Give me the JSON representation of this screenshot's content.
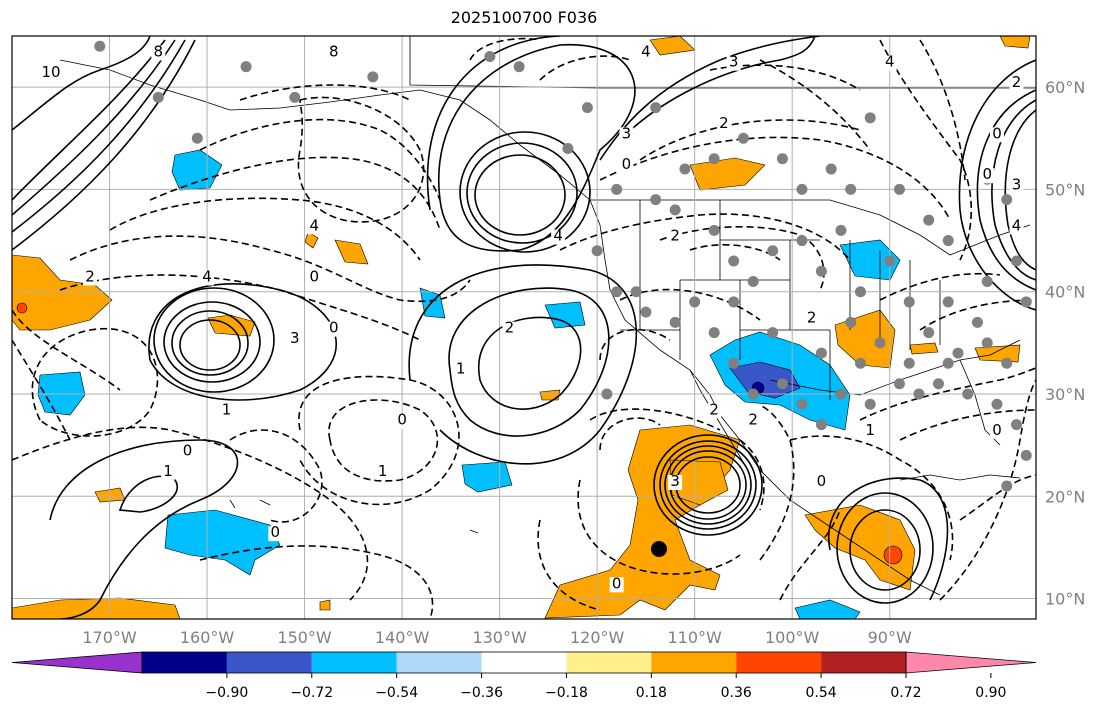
{
  "title": "2025100700 F036",
  "map": {
    "lon_range": [
      -180,
      -75
    ],
    "lat_range": [
      8,
      65
    ],
    "lon_ticks": [
      {
        "lon": -170,
        "label": "170°W"
      },
      {
        "lon": -160,
        "label": "160°W"
      },
      {
        "lon": -150,
        "label": "150°W"
      },
      {
        "lon": -140,
        "label": "140°W"
      },
      {
        "lon": -130,
        "label": "130°W"
      },
      {
        "lon": -120,
        "label": "120°W"
      },
      {
        "lon": -110,
        "label": "110°W"
      },
      {
        "lon": -100,
        "label": "100°W"
      },
      {
        "lon": -90,
        "label": "90°W"
      }
    ],
    "lat_ticks": [
      {
        "lat": 60,
        "label": "60°N"
      },
      {
        "lat": 50,
        "label": "50°N"
      },
      {
        "lat": 40,
        "label": "40°N"
      },
      {
        "lat": 30,
        "label": "30°N"
      },
      {
        "lat": 20,
        "label": "20°N"
      },
      {
        "lat": 10,
        "label": "10°N"
      }
    ],
    "grid": true,
    "contour_labels": [
      {
        "lon": -176,
        "lat": 61,
        "text": "10"
      },
      {
        "lon": -172,
        "lat": 41,
        "text": "2"
      },
      {
        "lon": -165,
        "lat": 63,
        "text": "8"
      },
      {
        "lon": -147,
        "lat": 63,
        "text": "8"
      },
      {
        "lon": -160,
        "lat": 41,
        "text": "4"
      },
      {
        "lon": -149,
        "lat": 46,
        "text": "4"
      },
      {
        "lon": -151,
        "lat": 35,
        "text": "3"
      },
      {
        "lon": -147,
        "lat": 36,
        "text": "0"
      },
      {
        "lon": -149,
        "lat": 41,
        "text": "0"
      },
      {
        "lon": -129,
        "lat": 36,
        "text": "2"
      },
      {
        "lon": -134,
        "lat": 32,
        "text": "1"
      },
      {
        "lon": -124,
        "lat": 45,
        "text": "4"
      },
      {
        "lon": -117,
        "lat": 55,
        "text": "3"
      },
      {
        "lon": -117,
        "lat": 52,
        "text": "0"
      },
      {
        "lon": -115,
        "lat": 63,
        "text": "4"
      },
      {
        "lon": -106,
        "lat": 62,
        "text": "3"
      },
      {
        "lon": -107,
        "lat": 56,
        "text": "2"
      },
      {
        "lon": -112,
        "lat": 45,
        "text": "2"
      },
      {
        "lon": -158,
        "lat": 28,
        "text": "1"
      },
      {
        "lon": -162,
        "lat": 24,
        "text": "0"
      },
      {
        "lon": -164,
        "lat": 22,
        "text": "1"
      },
      {
        "lon": -140,
        "lat": 27,
        "text": "0"
      },
      {
        "lon": -142,
        "lat": 22,
        "text": "1"
      },
      {
        "lon": -153,
        "lat": 16,
        "text": "0"
      },
      {
        "lon": -112,
        "lat": 21,
        "text": "3"
      },
      {
        "lon": -108,
        "lat": 28,
        "text": "2"
      },
      {
        "lon": -104,
        "lat": 27,
        "text": "2"
      },
      {
        "lon": -118,
        "lat": 11,
        "text": "0"
      },
      {
        "lon": -98,
        "lat": 37,
        "text": "2"
      },
      {
        "lon": -97,
        "lat": 21,
        "text": "0"
      },
      {
        "lon": -92,
        "lat": 26,
        "text": "1"
      },
      {
        "lon": -79,
        "lat": 26,
        "text": "0"
      },
      {
        "lon": -80,
        "lat": 51,
        "text": "0"
      },
      {
        "lon": -77,
        "lat": 50,
        "text": "3"
      },
      {
        "lon": -77,
        "lat": 46,
        "text": "4"
      },
      {
        "lon": -90,
        "lat": 62,
        "text": "4"
      },
      {
        "lon": -77,
        "lat": 60,
        "text": "2"
      },
      {
        "lon": -79,
        "lat": 55,
        "text": "0"
      }
    ],
    "colors": {
      "contour": "#000000",
      "grid": "#b0b0b0",
      "station": "#808080",
      "tick_label": "#808080"
    }
  },
  "colorbar": {
    "ticks": [
      "−0.90",
      "−0.72",
      "−0.54",
      "−0.36",
      "−0.18",
      "0.18",
      "0.36",
      "0.54",
      "0.72",
      "0.90"
    ],
    "colors": [
      "#9932cc",
      "#00008b",
      "#3a57c9",
      "#00bfff",
      "#add8f8",
      "#ffffff",
      "#fff08a",
      "#ffa500",
      "#ff4500",
      "#b22222",
      "#ff88aa"
    ]
  }
}
